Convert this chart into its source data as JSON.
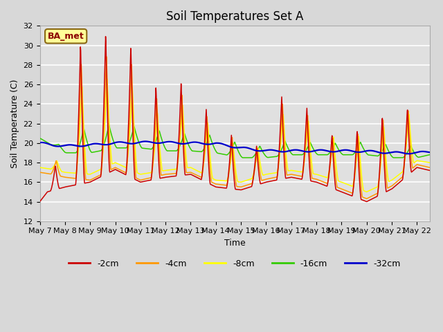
{
  "title": "Soil Temperatures Set A",
  "xlabel": "Time",
  "ylabel": "Soil Temperature (C)",
  "ylim": [
    12,
    32
  ],
  "xlim": [
    0,
    15.5
  ],
  "x_tick_labels": [
    "May 7",
    "May 8",
    "May 9",
    "May 10",
    "May 11",
    "May 12",
    "May 13",
    "May 14",
    "May 15",
    "May 16",
    "May 17",
    "May 18",
    "May 19",
    "May 20",
    "May 21",
    "May 22"
  ],
  "legend_label": "BA_met",
  "series_colors": {
    "-2cm": "#cc0000",
    "-4cm": "#ff9900",
    "-8cm": "#ffff00",
    "-16cm": "#33cc00",
    "-32cm": "#0000cc"
  },
  "background_color": "#e0e0e0",
  "grid_color": "#ffffff",
  "title_fontsize": 12,
  "axis_fontsize": 9,
  "tick_fontsize": 8
}
